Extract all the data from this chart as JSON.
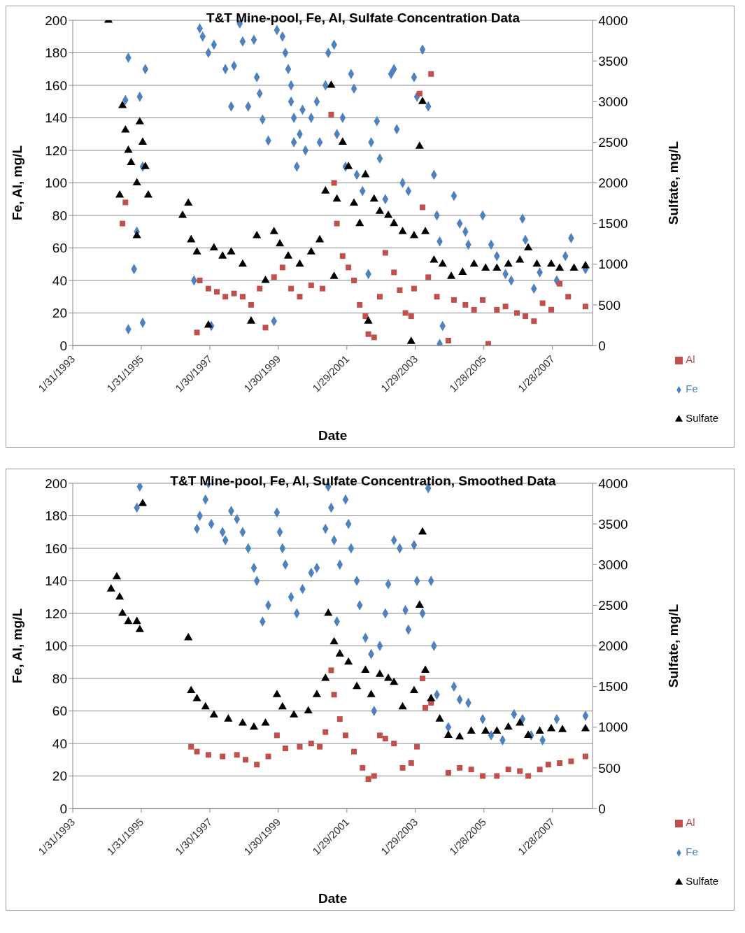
{
  "chart_data": [
    {
      "type": "scatter",
      "title": "T&T Mine-pool, Fe, Al, Sulfate Concentration Data",
      "xlabel": "Date",
      "ylabel": "Fe, Al, mg/L",
      "y2label": "Sulfate, mg/L",
      "xlim": [
        "1993-01-31",
        "2008-04-01"
      ],
      "xticks": [
        {
          "value": "1993-01-31",
          "label": "1/31/1993"
        },
        {
          "value": "1995-01-31",
          "label": "1/31/1995"
        },
        {
          "value": "1997-01-30",
          "label": "1/30/1997"
        },
        {
          "value": "1999-01-30",
          "label": "1/30/1999"
        },
        {
          "value": "2001-01-29",
          "label": "1/29/2001"
        },
        {
          "value": "2003-01-29",
          "label": "1/29/2003"
        },
        {
          "value": "2005-01-28",
          "label": "1/28/2005"
        },
        {
          "value": "2007-01-28",
          "label": "1/28/2007"
        }
      ],
      "ylim": [
        0,
        200
      ],
      "yticks": [
        0,
        20,
        40,
        60,
        80,
        100,
        120,
        140,
        160,
        180,
        200
      ],
      "y2lim": [
        0,
        4000
      ],
      "y2ticks": [
        0,
        500,
        1000,
        1500,
        2000,
        2500,
        3000,
        3500,
        4000
      ],
      "grid": "y",
      "legend": "bottom right",
      "series": [
        {
          "name": "Fe",
          "color": "#4f81bd",
          "marker": "diamond",
          "x": [
            "1994-08",
            "1994-09",
            "1994-09",
            "1994-11",
            "1995-01",
            "1995-02",
            "1994-12",
            "1995-03",
            "1995-02",
            "1996-08",
            "1996-10",
            "1996-11",
            "1997-01",
            "1997-03",
            "1997-02",
            "1997-07",
            "1997-09",
            "1997-10",
            "1997-12",
            "1998-01",
            "1998-03",
            "1998-05",
            "1998-06",
            "1998-07",
            "1998-08",
            "1998-10",
            "1998-12",
            "1999-01",
            "1999-03",
            "1999-04",
            "1999-05",
            "1999-06",
            "1999-06",
            "1999-07",
            "1999-07",
            "1999-08",
            "1999-09",
            "1999-10",
            "1999-11",
            "2000-01",
            "2000-03",
            "2000-04",
            "2000-06",
            "2000-07",
            "2000-09",
            "2000-10",
            "2000-12",
            "2001-01",
            "2001-03",
            "2001-04",
            "2001-05",
            "2001-07",
            "2001-09",
            "2001-10",
            "2001-12",
            "2002-01",
            "2002-03",
            "2002-05",
            "2002-06",
            "2002-07",
            "2002-09",
            "2002-11",
            "2003-01",
            "2003-02",
            "2003-04",
            "2003-06",
            "2003-08",
            "2003-09",
            "2003-10",
            "2003-11",
            "2003-10",
            "2004-03",
            "2004-05",
            "2004-07",
            "2004-08",
            "2005-01",
            "2005-04",
            "2005-06",
            "2005-09",
            "2005-11",
            "2006-03",
            "2006-04",
            "2006-07",
            "2006-09",
            "2007-03",
            "2007-06",
            "2007-08",
            "2008-01"
          ],
          "values": [
            151,
            177,
            10,
            47,
            153,
            14,
            70,
            170,
            110,
            40,
            195,
            190,
            180,
            185,
            12,
            170,
            147,
            172,
            198,
            187,
            147,
            188,
            165,
            155,
            139,
            126,
            15,
            194,
            190,
            180,
            170,
            160,
            150,
            140,
            125,
            110,
            130,
            145,
            120,
            140,
            150,
            125,
            160,
            180,
            185,
            130,
            140,
            110,
            167,
            158,
            105,
            95,
            44,
            125,
            138,
            115,
            90,
            167,
            170,
            133,
            100,
            95,
            165,
            153,
            182,
            147,
            105,
            80,
            64,
            12,
            1,
            92,
            75,
            70,
            62,
            80,
            62,
            55,
            44,
            40,
            78,
            65,
            35,
            45,
            40,
            55,
            66,
            47
          ]
        },
        {
          "name": "Al",
          "color": "#c0504d",
          "marker": "square",
          "x": [
            "1994-07",
            "1994-08",
            "1996-09",
            "1996-10",
            "1997-01",
            "1997-04",
            "1997-07",
            "1997-10",
            "1998-01",
            "1998-04",
            "1998-07",
            "1998-09",
            "1998-12",
            "1999-03",
            "1999-06",
            "1999-09",
            "2000-01",
            "2000-05",
            "2000-08",
            "2000-09",
            "2000-10",
            "2000-12",
            "2001-02",
            "2001-04",
            "2001-06",
            "2001-08",
            "2001-09",
            "2001-11",
            "2002-01",
            "2002-03",
            "2002-06",
            "2002-08",
            "2002-10",
            "2002-12",
            "2003-01",
            "2003-03",
            "2003-04",
            "2003-06",
            "2003-07",
            "2003-09",
            "2004-01",
            "2004-03",
            "2004-07",
            "2004-10",
            "2005-01",
            "2005-03",
            "2005-06",
            "2005-09",
            "2006-01",
            "2006-04",
            "2006-07",
            "2006-10",
            "2007-01",
            "2007-04",
            "2007-07",
            "2008-01"
          ],
          "values": [
            75,
            88,
            8,
            40,
            35,
            33,
            30,
            32,
            30,
            25,
            35,
            11,
            42,
            48,
            35,
            30,
            37,
            35,
            142,
            100,
            75,
            55,
            48,
            40,
            25,
            18,
            7,
            5,
            30,
            57,
            45,
            34,
            20,
            18,
            35,
            155,
            85,
            42,
            167,
            30,
            3,
            28,
            25,
            22,
            28,
            1,
            22,
            24,
            20,
            18,
            15,
            26,
            22,
            38,
            30,
            24
          ]
        },
        {
          "name": "Sulfate",
          "color": "#000000",
          "marker": "triangle",
          "axis": "y2",
          "x": [
            "1994-02",
            "1994-06",
            "1994-07",
            "1994-08",
            "1994-09",
            "1994-10",
            "1994-12",
            "1995-01",
            "1995-02",
            "1994-12",
            "1995-03",
            "1995-04",
            "1996-04",
            "1996-06",
            "1996-07",
            "1996-09",
            "1997-01",
            "1997-03",
            "1997-06",
            "1997-09",
            "1998-01",
            "1998-04",
            "1998-06",
            "1998-09",
            "1998-12",
            "1999-02",
            "1999-05",
            "1999-09",
            "2000-01",
            "2000-04",
            "2000-06",
            "2000-08",
            "2000-09",
            "2000-10",
            "2000-12",
            "2001-02",
            "2001-04",
            "2001-06",
            "2001-08",
            "2001-09",
            "2001-11",
            "2002-01",
            "2002-04",
            "2002-06",
            "2002-09",
            "2002-12",
            "2003-01",
            "2003-03",
            "2003-04",
            "2003-05",
            "2003-08",
            "2003-11",
            "2004-02",
            "2004-06",
            "2004-10",
            "2005-02",
            "2005-06",
            "2005-10",
            "2006-02",
            "2006-05",
            "2006-08",
            "2007-01",
            "2007-04",
            "2007-09",
            "2008-01"
          ],
          "values": [
            4000,
            1850,
            2950,
            2650,
            2400,
            2250,
            2000,
            2750,
            2500,
            1350,
            2200,
            1850,
            1600,
            1750,
            1300,
            1150,
            250,
            1200,
            1100,
            1150,
            1000,
            300,
            1350,
            800,
            1400,
            1250,
            1100,
            1000,
            1150,
            1300,
            1900,
            3200,
            850,
            1800,
            2500,
            2200,
            1750,
            1500,
            2100,
            300,
            1800,
            1650,
            1600,
            1500,
            1400,
            50,
            1350,
            2450,
            3000,
            1400,
            1050,
            1000,
            850,
            900,
            1000,
            950,
            950,
            1000,
            1050,
            1200,
            1000,
            1000,
            950,
            950,
            980
          ]
        }
      ]
    },
    {
      "type": "scatter",
      "title": "T&T Mine-pool, Fe, Al, Sulfate Concentration, Smoothed Data",
      "xlabel": "Date",
      "ylabel": "Fe, Al, mg/L",
      "y2label": "Sulfate, mg/L",
      "xlim": [
        "1993-01-31",
        "2008-04-01"
      ],
      "xticks": [
        {
          "value": "1993-01-31",
          "label": "1/31/1993"
        },
        {
          "value": "1995-01-31",
          "label": "1/31/1995"
        },
        {
          "value": "1997-01-30",
          "label": "1/30/1997"
        },
        {
          "value": "1999-01-30",
          "label": "1/30/1999"
        },
        {
          "value": "2001-01-29",
          "label": "1/29/2001"
        },
        {
          "value": "2003-01-29",
          "label": "1/29/2003"
        },
        {
          "value": "2005-01-28",
          "label": "1/28/2005"
        },
        {
          "value": "2007-01-28",
          "label": "1/28/2007"
        }
      ],
      "ylim": [
        0,
        200
      ],
      "yticks": [
        0,
        20,
        40,
        60,
        80,
        100,
        120,
        140,
        160,
        180,
        200
      ],
      "y2lim": [
        0,
        4000
      ],
      "y2ticks": [
        0,
        500,
        1000,
        1500,
        2000,
        2500,
        3000,
        3500,
        4000
      ],
      "grid": "y",
      "legend": "bottom right",
      "series": [
        {
          "name": "Fe",
          "color": "#4f81bd",
          "marker": "diamond",
          "x": [
            "1995-01",
            "1994-12",
            "1996-09",
            "1996-10",
            "1996-12",
            "1997-01",
            "1997-02",
            "1997-06",
            "1997-07",
            "1997-09",
            "1997-11",
            "1998-01",
            "1998-03",
            "1998-05",
            "1998-06",
            "1998-08",
            "1998-10",
            "1999-01",
            "1999-02",
            "1999-03",
            "1999-04",
            "1999-06",
            "1999-08",
            "1999-10",
            "2000-01",
            "2000-03",
            "2000-06",
            "2000-07",
            "2000-08",
            "2000-09",
            "2000-10",
            "2000-11",
            "2001-01",
            "2001-02",
            "2001-03",
            "2001-05",
            "2001-06",
            "2001-08",
            "2001-10",
            "2001-11",
            "2002-01",
            "2002-03",
            "2002-04",
            "2002-06",
            "2002-08",
            "2002-10",
            "2002-11",
            "2003-01",
            "2003-02",
            "2003-04",
            "2003-06",
            "2003-07",
            "2003-08",
            "2003-09",
            "2004-01",
            "2004-03",
            "2004-05",
            "2004-08",
            "2005-01",
            "2005-04",
            "2005-08",
            "2005-12",
            "2006-03",
            "2006-06",
            "2006-10",
            "2007-03",
            "2008-01"
          ],
          "values": [
            198,
            185,
            172,
            180,
            190,
            200,
            175,
            170,
            165,
            183,
            178,
            170,
            160,
            148,
            140,
            115,
            125,
            182,
            170,
            160,
            150,
            130,
            120,
            135,
            145,
            148,
            172,
            198,
            185,
            165,
            115,
            150,
            190,
            175,
            160,
            140,
            125,
            105,
            95,
            60,
            100,
            120,
            138,
            165,
            160,
            122,
            110,
            162,
            140,
            120,
            197,
            140,
            100,
            70,
            50,
            75,
            67,
            65,
            55,
            45,
            42,
            58,
            55,
            45,
            42,
            55,
            57
          ]
        },
        {
          "name": "Al",
          "color": "#c0504d",
          "marker": "square",
          "x": [
            "1996-07",
            "1996-09",
            "1997-01",
            "1997-06",
            "1997-11",
            "1998-02",
            "1998-06",
            "1998-10",
            "1999-01",
            "1999-04",
            "1999-09",
            "2000-01",
            "2000-04",
            "2000-06",
            "2000-08",
            "2000-09",
            "2000-11",
            "2001-01",
            "2001-04",
            "2001-07",
            "2001-09",
            "2001-11",
            "2002-01",
            "2002-03",
            "2002-06",
            "2002-09",
            "2002-12",
            "2003-02",
            "2003-04",
            "2003-05",
            "2003-07",
            "2004-01",
            "2004-05",
            "2004-09",
            "2005-01",
            "2005-06",
            "2005-10",
            "2006-02",
            "2006-05",
            "2006-09",
            "2006-12",
            "2007-04",
            "2007-08",
            "2008-01"
          ],
          "values": [
            38,
            35,
            33,
            32,
            33,
            30,
            27,
            32,
            45,
            37,
            38,
            40,
            38,
            47,
            85,
            70,
            55,
            45,
            35,
            25,
            18,
            20,
            45,
            43,
            40,
            25,
            28,
            38,
            80,
            62,
            65,
            22,
            25,
            24,
            20,
            20,
            24,
            23,
            20,
            24,
            27,
            28,
            29,
            32
          ]
        },
        {
          "name": "Sulfate",
          "color": "#000000",
          "marker": "triangle",
          "axis": "y2",
          "x": [
            "1994-03",
            "1994-05",
            "1994-06",
            "1994-07",
            "1994-09",
            "1994-12",
            "1995-01",
            "1995-02",
            "1996-06",
            "1996-07",
            "1996-09",
            "1996-12",
            "1997-03",
            "1997-08",
            "1998-01",
            "1998-05",
            "1998-09",
            "1999-01",
            "1999-03",
            "1999-07",
            "1999-12",
            "2000-03",
            "2000-06",
            "2000-07",
            "2000-09",
            "2000-11",
            "2001-02",
            "2001-05",
            "2001-08",
            "2001-10",
            "2002-01",
            "2002-04",
            "2002-06",
            "2002-09",
            "2003-01",
            "2003-03",
            "2003-04",
            "2003-05",
            "2003-07",
            "2003-10",
            "2004-01",
            "2004-05",
            "2004-09",
            "2005-02",
            "2005-06",
            "2005-10",
            "2006-02",
            "2006-05",
            "2006-09",
            "2007-01",
            "2007-05",
            "2008-01"
          ],
          "values": [
            2700,
            2850,
            2600,
            2400,
            2300,
            2300,
            2200,
            3750,
            2100,
            1450,
            1350,
            1250,
            1150,
            1100,
            1050,
            1000,
            1050,
            1400,
            1250,
            1150,
            1200,
            1400,
            1600,
            2400,
            2050,
            1900,
            1800,
            1500,
            1700,
            1400,
            1650,
            1600,
            1550,
            1250,
            1450,
            2500,
            3400,
            1700,
            1350,
            1100,
            900,
            880,
            950,
            950,
            950,
            1000,
            1050,
            900,
            950,
            980,
            970,
            980
          ]
        }
      ]
    }
  ]
}
